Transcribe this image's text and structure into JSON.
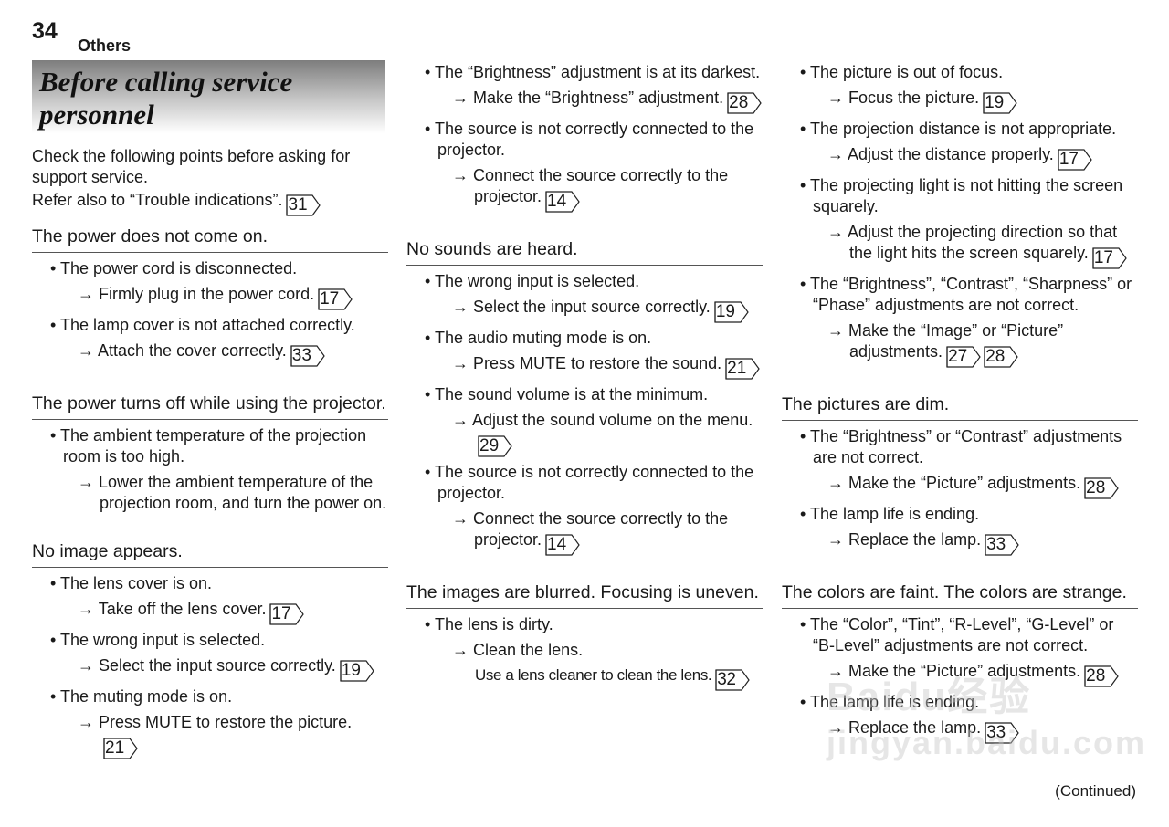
{
  "page_number": "34",
  "section": "Others",
  "title_lines": [
    "Before calling service",
    "personnel"
  ],
  "intro": [
    "Check the following points before asking for support service."
  ],
  "intro_ref": {
    "text": "Refer also to “Trouble indications”.",
    "refs": [
      "31"
    ]
  },
  "continued": "(Continued)",
  "watermark": "Baidu经验 jingyan.baidu.com",
  "columns": [
    [
      {
        "heading": "The power does not come on."
      },
      {
        "item": "The power cord is disconnected.",
        "actions": [
          {
            "text": "Firmly plug in the power cord.",
            "refs": [
              "17"
            ]
          }
        ]
      },
      {
        "item": "The lamp cover is not attached correctly.",
        "actions": [
          {
            "text": "Attach the cover correctly.",
            "refs": [
              "33"
            ]
          }
        ]
      },
      {
        "heading": "The power turns off while using the projector."
      },
      {
        "item": "The ambient temperature of the projection room is too high.",
        "actions": [
          {
            "text": "Lower the ambient temperature of the projection room, and turn the power on.",
            "refs": []
          }
        ]
      },
      {
        "heading": "No image appears."
      },
      {
        "item": "The lens cover is on.",
        "actions": [
          {
            "text": "Take off the lens cover.",
            "refs": [
              "17"
            ]
          }
        ]
      },
      {
        "item": "The wrong input is selected.",
        "actions": [
          {
            "text": "Select the input source correctly.",
            "refs": [
              "19"
            ]
          }
        ]
      },
      {
        "item": "The muting mode is on.",
        "actions": [
          {
            "text": "Press MUTE to restore the picture.",
            "refs": [
              "21"
            ]
          }
        ]
      }
    ],
    [
      {
        "item": "The “Brightness” adjustment is at its darkest.",
        "actions": [
          {
            "text": "Make the “Brightness” adjustment.",
            "refs": [
              "28"
            ]
          }
        ]
      },
      {
        "item": "The source is not correctly connected to the projector.",
        "actions": [
          {
            "text": "Connect the source correctly to the projector.",
            "refs": [
              "14"
            ]
          }
        ]
      },
      {
        "heading": "No sounds are heard."
      },
      {
        "item": "The wrong input is selected.",
        "actions": [
          {
            "text": "Select the input source correctly.",
            "refs": [
              "19"
            ]
          }
        ]
      },
      {
        "item": "The audio muting mode is on.",
        "actions": [
          {
            "text": "Press MUTE to restore the sound.",
            "refs": [
              "21"
            ]
          }
        ]
      },
      {
        "item": "The sound volume is at the minimum.",
        "actions": [
          {
            "text": "Adjust the sound volume on the menu.",
            "refs": [
              "29"
            ]
          }
        ]
      },
      {
        "item": "The source is not correctly connected to the projector.",
        "actions": [
          {
            "text": "Connect the source correctly to the projector.",
            "refs": [
              "14"
            ]
          }
        ]
      },
      {
        "heading": "The images are blurred. Focusing is uneven."
      },
      {
        "item": "The lens is dirty.",
        "actions": [
          {
            "text": "Clean the lens.",
            "refs": [],
            "note": "Use a lens cleaner to clean the lens.",
            "note_refs": [
              "32"
            ]
          }
        ]
      }
    ],
    [
      {
        "item": "The picture is out of focus.",
        "actions": [
          {
            "text": "Focus the picture.",
            "refs": [
              "19"
            ]
          }
        ]
      },
      {
        "item": "The projection distance is not appropriate.",
        "actions": [
          {
            "text": "Adjust the distance properly.",
            "refs": [
              "17"
            ]
          }
        ]
      },
      {
        "item": "The projecting light is not hitting the screen squarely.",
        "actions": [
          {
            "text": "Adjust the projecting direction so that the light hits the screen squarely.",
            "refs": [
              "17"
            ]
          }
        ]
      },
      {
        "item": "The “Brightness”, “Contrast”, “Sharpness” or “Phase” adjustments are not correct.",
        "actions": [
          {
            "text": "Make the “Image” or “Picture” adjustments.",
            "refs": [
              "27",
              "28"
            ]
          }
        ]
      },
      {
        "heading": "The pictures are dim."
      },
      {
        "item": "The “Brightness” or “Contrast” adjustments are not correct.",
        "actions": [
          {
            "text": "Make the “Picture” adjustments.",
            "refs": [
              "28"
            ]
          }
        ]
      },
      {
        "item": "The lamp life is ending.",
        "actions": [
          {
            "text": "Replace the lamp.",
            "refs": [
              "33"
            ]
          }
        ]
      },
      {
        "heading": "The colors are faint. The colors are strange."
      },
      {
        "item": "The “Color”, “Tint”, “R-Level”, “G-Level” or “B-Level” adjustments are not correct.",
        "actions": [
          {
            "text": "Make the “Picture” adjustments.",
            "refs": [
              "28"
            ]
          }
        ]
      },
      {
        "item": "The lamp life is ending.",
        "actions": [
          {
            "text": "Replace the lamp.",
            "refs": [
              "33"
            ]
          }
        ]
      }
    ]
  ]
}
